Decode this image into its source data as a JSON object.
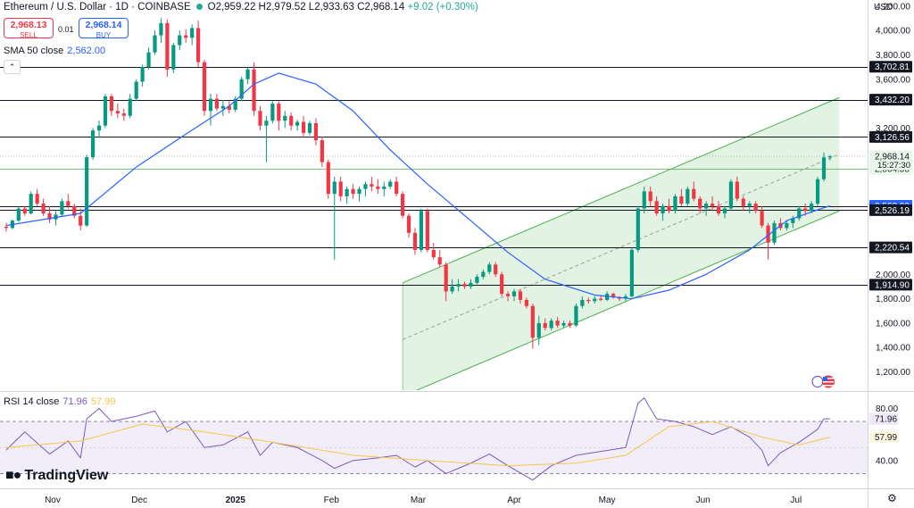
{
  "header": {
    "title": "Ethereum / U.S. Dollar · 1D · COINBASE",
    "ohlc": "O2,959.22 H2,979.52 L2,933.63 C2,968.14",
    "change": "+9.02 (+0.30%)"
  },
  "trade": {
    "sell_price": "2,968.13",
    "sell_label": "SELL",
    "buy_price": "2,968.14",
    "buy_label": "BUY",
    "spread": "0.01"
  },
  "sma_legend": {
    "label": "SMA 50 close",
    "value": "2,562.00"
  },
  "rsi_legend": {
    "label": "RSI 14 close",
    "value": "71.96",
    "ma_value": "57.99"
  },
  "currency": "USD",
  "logo_text": "TradingView",
  "chart_data": {
    "type": "candlestick",
    "colors": {
      "up": "#089981",
      "down": "#f23645",
      "sma": "#2962ff",
      "rsi": "#7e57c2",
      "rsi_ma": "#f7c548",
      "channel": "#4caf50"
    },
    "price_axis": {
      "ylim": [
        1050,
        4250
      ],
      "ticks": [
        "4,200.00",
        "4,000.00",
        "3,800.00",
        "3,600.00",
        "3,200.00",
        "2,000.00",
        "1,800.00",
        "1,600.00",
        "1,400.00",
        "1,200.00"
      ]
    },
    "x_ticks": [
      "Nov",
      "Dec",
      "2025",
      "Feb",
      "Mar",
      "Apr",
      "May",
      "Jun",
      "Jul"
    ],
    "horizontal_levels": [
      "3,702.81",
      "3,432.20",
      "3,126.56",
      "2,864.58",
      "2,562.00",
      "2,526.19",
      "2,220.54",
      "1,914.90"
    ],
    "last_price": {
      "value": "2,968.14",
      "countdown": "15:27:30"
    },
    "channel": {
      "upper": [
        [
          "Feb 24",
          1930
        ],
        [
          "Jul 15",
          3450
        ]
      ],
      "lower": [
        [
          "Feb 24",
          1000
        ],
        [
          "Jul 15",
          2520
        ]
      ]
    },
    "ohlc": [
      [
        "Oct 19",
        2390,
        2420,
        2350,
        2380
      ],
      [
        "Oct 21",
        2380,
        2450,
        2370,
        2440
      ],
      [
        "Oct 23",
        2440,
        2560,
        2430,
        2540
      ],
      [
        "Oct 25",
        2540,
        2560,
        2480,
        2500
      ],
      [
        "Oct 27",
        2500,
        2680,
        2490,
        2660
      ],
      [
        "Oct 29",
        2660,
        2700,
        2560,
        2580
      ],
      [
        "Oct 31",
        2580,
        2620,
        2480,
        2500
      ],
      [
        "Nov 02",
        2500,
        2560,
        2420,
        2450
      ],
      [
        "Nov 04",
        2450,
        2520,
        2400,
        2490
      ],
      [
        "Nov 06",
        2490,
        2620,
        2470,
        2600
      ],
      [
        "Nov 08",
        2600,
        2660,
        2540,
        2560
      ],
      [
        "Nov 10",
        2560,
        2580,
        2460,
        2480
      ],
      [
        "Nov 12",
        2480,
        2540,
        2360,
        2400
      ],
      [
        "Nov 14",
        2400,
        2980,
        2390,
        2960
      ],
      [
        "Nov 16",
        2960,
        3200,
        2940,
        3180
      ],
      [
        "Nov 18",
        3180,
        3260,
        3120,
        3220
      ],
      [
        "Nov 20",
        3220,
        3480,
        3200,
        3460
      ],
      [
        "Nov 22",
        3460,
        3480,
        3300,
        3340
      ],
      [
        "Nov 24",
        3340,
        3400,
        3280,
        3320
      ],
      [
        "Nov 26",
        3320,
        3360,
        3260,
        3300
      ],
      [
        "Nov 28",
        3300,
        3480,
        3280,
        3440
      ],
      [
        "Nov 30",
        3440,
        3600,
        3420,
        3580
      ],
      [
        "Dec 02",
        3580,
        3720,
        3540,
        3700
      ],
      [
        "Dec 04",
        3700,
        3860,
        3680,
        3820
      ],
      [
        "Dec 06",
        3820,
        4000,
        3800,
        3960
      ],
      [
        "Dec 08",
        3960,
        4100,
        3900,
        4060
      ],
      [
        "Dec 10",
        4060,
        4090,
        3620,
        3680
      ],
      [
        "Dec 12",
        3680,
        3900,
        3650,
        3880
      ],
      [
        "Dec 14",
        3880,
        4000,
        3840,
        3960
      ],
      [
        "Dec 16",
        3960,
        4010,
        3900,
        3940
      ],
      [
        "Dec 18",
        3940,
        4050,
        3880,
        4020
      ],
      [
        "Dec 20",
        4020,
        4080,
        3700,
        3740
      ],
      [
        "Dec 22",
        3740,
        3760,
        3300,
        3340
      ],
      [
        "Dec 24",
        3340,
        3480,
        3220,
        3440
      ],
      [
        "Dec 26",
        3440,
        3480,
        3340,
        3360
      ],
      [
        "Dec 28",
        3360,
        3430,
        3300,
        3380
      ],
      [
        "Dec 30",
        3380,
        3420,
        3320,
        3350
      ],
      [
        "Jan 01",
        3350,
        3460,
        3330,
        3440
      ],
      [
        "Jan 03",
        3440,
        3620,
        3420,
        3600
      ],
      [
        "Jan 05",
        3600,
        3700,
        3560,
        3680
      ],
      [
        "Jan 07",
        3680,
        3740,
        3300,
        3340
      ],
      [
        "Jan 09",
        3340,
        3380,
        3180,
        3220
      ],
      [
        "Jan 11",
        3220,
        3300,
        2920,
        3260
      ],
      [
        "Jan 13",
        3260,
        3420,
        3240,
        3400
      ],
      [
        "Jan 15",
        3400,
        3420,
        3180,
        3260
      ],
      [
        "Jan 17",
        3260,
        3340,
        3200,
        3300
      ],
      [
        "Jan 19",
        3300,
        3330,
        3180,
        3220
      ],
      [
        "Jan 21",
        3220,
        3270,
        3180,
        3250
      ],
      [
        "Jan 23",
        3250,
        3300,
        3120,
        3160
      ],
      [
        "Jan 25",
        3160,
        3260,
        3140,
        3240
      ],
      [
        "Jan 27",
        3240,
        3280,
        3060,
        3100
      ],
      [
        "Jan 29",
        3100,
        3130,
        2880,
        2920
      ],
      [
        "Jan 31",
        2920,
        2940,
        2620,
        2660
      ],
      [
        "Feb 02",
        2660,
        2800,
        2120,
        2760
      ],
      [
        "Feb 04",
        2760,
        2800,
        2600,
        2640
      ],
      [
        "Feb 06",
        2640,
        2720,
        2580,
        2700
      ],
      [
        "Feb 08",
        2700,
        2740,
        2620,
        2660
      ],
      [
        "Feb 10",
        2660,
        2720,
        2600,
        2700
      ],
      [
        "Feb 12",
        2700,
        2760,
        2640,
        2740
      ],
      [
        "Feb 14",
        2740,
        2800,
        2680,
        2720
      ],
      [
        "Feb 16",
        2720,
        2780,
        2660,
        2700
      ],
      [
        "Feb 18",
        2700,
        2760,
        2640,
        2720
      ],
      [
        "Feb 20",
        2720,
        2780,
        2700,
        2760
      ],
      [
        "Feb 22",
        2760,
        2800,
        2640,
        2660
      ],
      [
        "Feb 24",
        2660,
        2680,
        2460,
        2480
      ],
      [
        "Feb 26",
        2480,
        2500,
        2300,
        2340
      ],
      [
        "Feb 28",
        2340,
        2380,
        2160,
        2200
      ],
      [
        "Mar 02",
        2200,
        2540,
        2180,
        2520
      ],
      [
        "Mar 04",
        2520,
        2540,
        2180,
        2200
      ],
      [
        "Mar 06",
        2200,
        2260,
        2120,
        2140
      ],
      [
        "Mar 08",
        2140,
        2200,
        2060,
        2080
      ],
      [
        "Mar 10",
        2080,
        2100,
        1780,
        1860
      ],
      [
        "Mar 12",
        1860,
        1960,
        1840,
        1900
      ],
      [
        "Mar 14",
        1900,
        1960,
        1860,
        1920
      ],
      [
        "Mar 16",
        1920,
        1940,
        1880,
        1900
      ],
      [
        "Mar 18",
        1900,
        1960,
        1880,
        1930
      ],
      [
        "Mar 20",
        1930,
        2000,
        1920,
        1980
      ],
      [
        "Mar 22",
        1980,
        2040,
        1960,
        2020
      ],
      [
        "Mar 24",
        2020,
        2100,
        2000,
        2080
      ],
      [
        "Mar 26",
        2080,
        2100,
        1980,
        2000
      ],
      [
        "Mar 28",
        2000,
        2020,
        1820,
        1840
      ],
      [
        "Mar 30",
        1840,
        1860,
        1780,
        1820
      ],
      [
        "Apr 01",
        1820,
        1880,
        1780,
        1860
      ],
      [
        "Apr 03",
        1860,
        1880,
        1760,
        1790
      ],
      [
        "Apr 05",
        1790,
        1810,
        1720,
        1740
      ],
      [
        "Apr 07",
        1740,
        1760,
        1390,
        1480
      ],
      [
        "Apr 09",
        1480,
        1660,
        1420,
        1600
      ],
      [
        "Apr 11",
        1600,
        1640,
        1540,
        1560
      ],
      [
        "Apr 13",
        1560,
        1640,
        1540,
        1620
      ],
      [
        "Apr 15",
        1620,
        1650,
        1560,
        1580
      ],
      [
        "Apr 17",
        1580,
        1620,
        1560,
        1600
      ],
      [
        "Apr 19",
        1600,
        1620,
        1560,
        1580
      ],
      [
        "Apr 21",
        1580,
        1760,
        1570,
        1740
      ],
      [
        "Apr 23",
        1740,
        1820,
        1720,
        1790
      ],
      [
        "Apr 25",
        1790,
        1810,
        1760,
        1780
      ],
      [
        "Apr 27",
        1780,
        1820,
        1760,
        1800
      ],
      [
        "Apr 29",
        1800,
        1830,
        1780,
        1790
      ],
      [
        "May 01",
        1790,
        1860,
        1780,
        1840
      ],
      [
        "May 03",
        1840,
        1850,
        1800,
        1810
      ],
      [
        "May 05",
        1810,
        1820,
        1780,
        1800
      ],
      [
        "May 07",
        1800,
        1840,
        1780,
        1820
      ],
      [
        "May 09",
        1820,
        2220,
        1810,
        2200
      ],
      [
        "May 11",
        2200,
        2560,
        2180,
        2540
      ],
      [
        "May 13",
        2540,
        2720,
        2500,
        2680
      ],
      [
        "May 15",
        2680,
        2720,
        2560,
        2600
      ],
      [
        "May 17",
        2600,
        2640,
        2480,
        2500
      ],
      [
        "May 19",
        2500,
        2580,
        2440,
        2560
      ],
      [
        "May 21",
        2560,
        2620,
        2500,
        2520
      ],
      [
        "May 23",
        2520,
        2660,
        2500,
        2640
      ],
      [
        "May 25",
        2640,
        2700,
        2560,
        2580
      ],
      [
        "May 27",
        2580,
        2720,
        2560,
        2700
      ],
      [
        "May 29",
        2700,
        2760,
        2600,
        2620
      ],
      [
        "May 31",
        2620,
        2640,
        2500,
        2540
      ],
      [
        "Jun 02",
        2540,
        2600,
        2480,
        2580
      ],
      [
        "Jun 04",
        2580,
        2640,
        2520,
        2560
      ],
      [
        "Jun 06",
        2560,
        2600,
        2480,
        2500
      ],
      [
        "Jun 08",
        2500,
        2560,
        2460,
        2540
      ],
      [
        "Jun 10",
        2540,
        2780,
        2520,
        2760
      ],
      [
        "Jun 12",
        2760,
        2800,
        2600,
        2620
      ],
      [
        "Jun 14",
        2620,
        2640,
        2520,
        2560
      ],
      [
        "Jun 16",
        2560,
        2600,
        2500,
        2580
      ],
      [
        "Jun 18",
        2580,
        2600,
        2500,
        2520
      ],
      [
        "Jun 20",
        2520,
        2560,
        2380,
        2400
      ],
      [
        "Jun 22",
        2400,
        2420,
        2120,
        2260
      ],
      [
        "Jun 24",
        2260,
        2440,
        2240,
        2420
      ],
      [
        "Jun 26",
        2420,
        2460,
        2360,
        2380
      ],
      [
        "Jun 28",
        2380,
        2440,
        2360,
        2420
      ],
      [
        "Jun 30",
        2420,
        2480,
        2380,
        2460
      ],
      [
        "Jul 02",
        2460,
        2560,
        2440,
        2540
      ],
      [
        "Jul 04",
        2540,
        2580,
        2480,
        2520
      ],
      [
        "Jul 06",
        2520,
        2600,
        2500,
        2580
      ],
      [
        "Jul 08",
        2580,
        2800,
        2560,
        2780
      ],
      [
        "Jul 10",
        2780,
        3000,
        2760,
        2959
      ],
      [
        "Jul 12",
        2959,
        2980,
        2934,
        2968
      ]
    ],
    "sma50": [
      [
        "Oct 19",
        2400
      ],
      [
        "Nov 12",
        2500
      ],
      [
        "Nov 30",
        2880
      ],
      [
        "Dec 16",
        3150
      ],
      [
        "Dec 30",
        3380
      ],
      [
        "Jan 07",
        3560
      ],
      [
        "Jan 15",
        3650
      ],
      [
        "Jan 27",
        3560
      ],
      [
        "Feb 08",
        3340
      ],
      [
        "Feb 20",
        3020
      ],
      [
        "Mar 04",
        2740
      ],
      [
        "Mar 18",
        2440
      ],
      [
        "Mar 30",
        2180
      ],
      [
        "Apr 11",
        1960
      ],
      [
        "Apr 27",
        1830
      ],
      [
        "May 09",
        1800
      ],
      [
        "May 21",
        1870
      ],
      [
        "Jun 02",
        2000
      ],
      [
        "Jun 16",
        2200
      ],
      [
        "Jun 28",
        2440
      ],
      [
        "Jul 08",
        2530
      ],
      [
        "Jul 12",
        2562
      ]
    ],
    "rsi_axis": {
      "ylim": [
        20,
        92
      ],
      "ticks": [
        "80.00",
        "40.00"
      ],
      "bands": [
        70,
        30
      ]
    },
    "rsi": [
      [
        "Oct 19",
        48
      ],
      [
        "Oct 25",
        62
      ],
      [
        "Nov 02",
        45
      ],
      [
        "Nov 08",
        55
      ],
      [
        "Nov 12",
        42
      ],
      [
        "Nov 14",
        72
      ],
      [
        "Nov 18",
        80
      ],
      [
        "Nov 22",
        70
      ],
      [
        "Nov 30",
        74
      ],
      [
        "Dec 06",
        78
      ],
      [
        "Dec 10",
        62
      ],
      [
        "Dec 16",
        70
      ],
      [
        "Dec 22",
        50
      ],
      [
        "Dec 28",
        52
      ],
      [
        "Jan 05",
        62
      ],
      [
        "Jan 09",
        44
      ],
      [
        "Jan 13",
        54
      ],
      [
        "Jan 21",
        50
      ],
      [
        "Jan 29",
        40
      ],
      [
        "Feb 02",
        34
      ],
      [
        "Feb 08",
        40
      ],
      [
        "Feb 16",
        42
      ],
      [
        "Feb 22",
        44
      ],
      [
        "Feb 28",
        35
      ],
      [
        "Mar 04",
        40
      ],
      [
        "Mar 10",
        30
      ],
      [
        "Mar 18",
        38
      ],
      [
        "Mar 24",
        45
      ],
      [
        "Mar 30",
        36
      ],
      [
        "Apr 07",
        25
      ],
      [
        "Apr 13",
        36
      ],
      [
        "Apr 21",
        44
      ],
      [
        "Apr 29",
        47
      ],
      [
        "May 07",
        50
      ],
      [
        "May 11",
        84
      ],
      [
        "May 13",
        88
      ],
      [
        "May 17",
        72
      ],
      [
        "May 23",
        70
      ],
      [
        "May 29",
        66
      ],
      [
        "Jun 04",
        60
      ],
      [
        "Jun 10",
        66
      ],
      [
        "Jun 16",
        58
      ],
      [
        "Jun 20",
        48
      ],
      [
        "Jun 22",
        36
      ],
      [
        "Jun 26",
        46
      ],
      [
        "Jul 02",
        54
      ],
      [
        "Jul 08",
        64
      ],
      [
        "Jul 10",
        72
      ],
      [
        "Jul 12",
        72
      ]
    ],
    "rsi_ma": [
      [
        "Oct 19",
        50
      ],
      [
        "Nov 12",
        55
      ],
      [
        "Dec 02",
        68
      ],
      [
        "Dec 22",
        62
      ],
      [
        "Jan 13",
        54
      ],
      [
        "Feb 08",
        44
      ],
      [
        "Mar 04",
        40
      ],
      [
        "Mar 30",
        36
      ],
      [
        "Apr 21",
        38
      ],
      [
        "May 07",
        44
      ],
      [
        "May 21",
        66
      ],
      [
        "Jun 04",
        70
      ],
      [
        "Jun 20",
        58
      ],
      [
        "Jul 02",
        52
      ],
      [
        "Jul 12",
        58
      ]
    ]
  }
}
